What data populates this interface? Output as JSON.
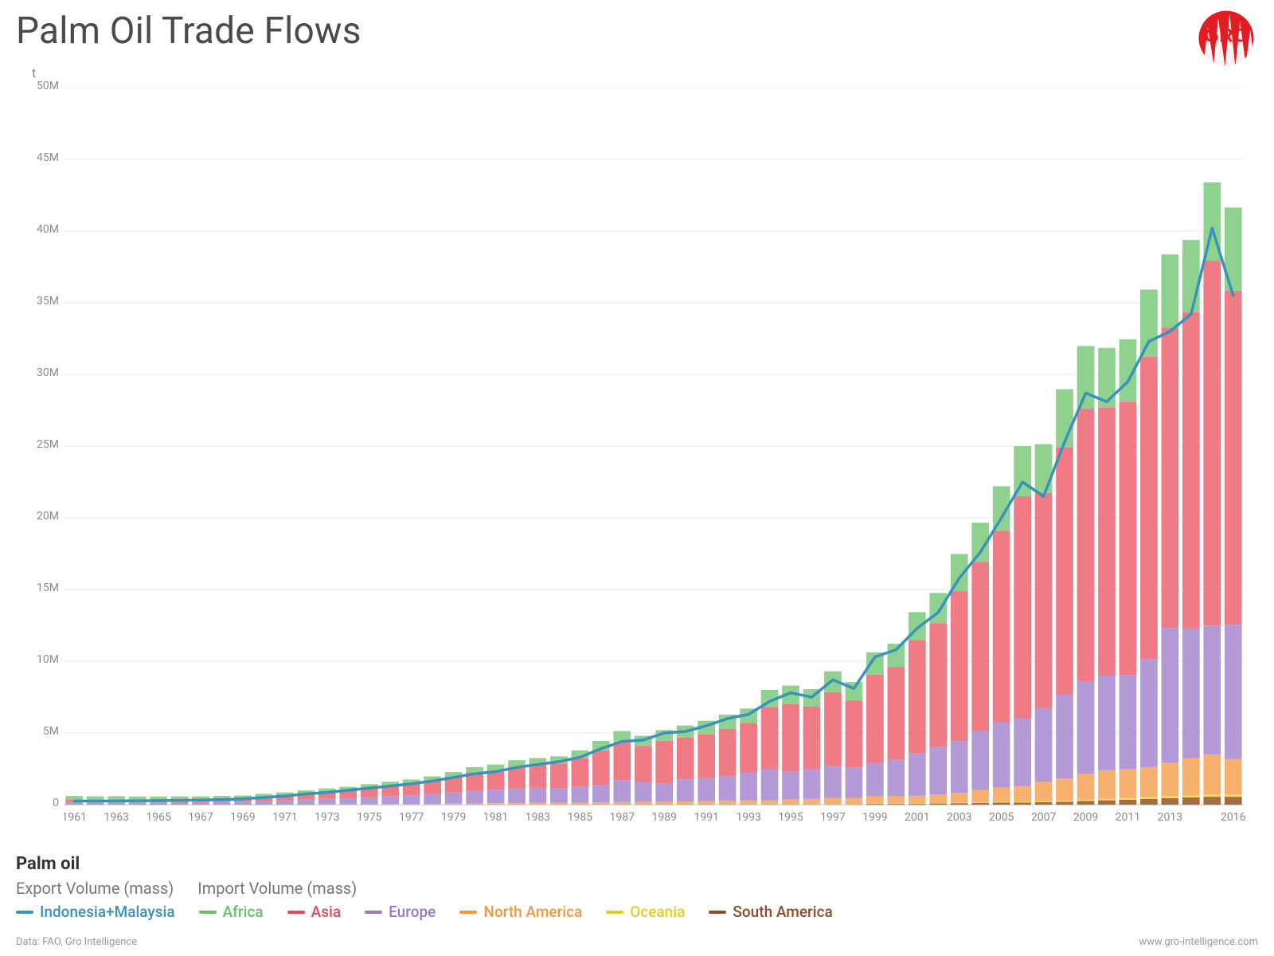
{
  "title": "Palm Oil Trade Flows",
  "y_unit": "t",
  "chart": {
    "type": "stacked-bar-with-line",
    "background_color": "#ffffff",
    "grid_color": "#e8e8e8",
    "axis_color": "#d0d0d0",
    "axis_label_color": "#8a8a8a",
    "axis_label_fontsize": 14,
    "bar_gap_ratio": 0.18,
    "ylim": [
      0,
      50
    ],
    "ytick_step": 5,
    "ytick_suffix": "M",
    "years": [
      1961,
      1962,
      1963,
      1964,
      1965,
      1966,
      1967,
      1968,
      1969,
      1970,
      1971,
      1972,
      1973,
      1974,
      1975,
      1976,
      1977,
      1978,
      1979,
      1980,
      1981,
      1982,
      1983,
      1984,
      1985,
      1986,
      1987,
      1988,
      1989,
      1990,
      1991,
      1992,
      1993,
      1994,
      1995,
      1996,
      1997,
      1998,
      1999,
      2000,
      2001,
      2002,
      2003,
      2004,
      2005,
      2006,
      2007,
      2008,
      2009,
      2010,
      2011,
      2012,
      2013,
      2014,
      2015,
      2016
    ],
    "x_tick_years": [
      1961,
      1963,
      1965,
      1967,
      1969,
      1971,
      1973,
      1975,
      1977,
      1979,
      1981,
      1983,
      1985,
      1987,
      1989,
      1991,
      1993,
      1995,
      1997,
      1999,
      2001,
      2003,
      2005,
      2007,
      2009,
      2011,
      2013,
      2016
    ],
    "stack_order": [
      "south_america",
      "oceania",
      "north_america",
      "europe",
      "asia",
      "africa"
    ],
    "series_colors": {
      "africa": "#8fd18f",
      "asia": "#ef7b86",
      "europe": "#b39ad6",
      "north_america": "#f7b06e",
      "oceania": "#f2e24b",
      "south_america": "#a66b3f"
    },
    "series": {
      "south_america": [
        0,
        0,
        0,
        0,
        0,
        0,
        0,
        0,
        0,
        0,
        0,
        0,
        0,
        0,
        0,
        0,
        0,
        0,
        0,
        0,
        0,
        0,
        0,
        0,
        0,
        0,
        0,
        0,
        0,
        0,
        0,
        0,
        0,
        0,
        0,
        0,
        0,
        0,
        0.05,
        0.05,
        0.05,
        0.08,
        0.1,
        0.12,
        0.15,
        0.15,
        0.18,
        0.2,
        0.25,
        0.3,
        0.35,
        0.4,
        0.45,
        0.5,
        0.55,
        0.55
      ],
      "oceania": [
        0,
        0,
        0,
        0,
        0,
        0,
        0,
        0,
        0,
        0,
        0,
        0,
        0,
        0,
        0,
        0,
        0,
        0,
        0,
        0,
        0,
        0,
        0,
        0,
        0,
        0,
        0,
        0,
        0,
        0,
        0,
        0,
        0,
        0,
        0,
        0,
        0,
        0,
        0.02,
        0.02,
        0.02,
        0.03,
        0.03,
        0.04,
        0.05,
        0.05,
        0.06,
        0.07,
        0.08,
        0.1,
        0.1,
        0.12,
        0.12,
        0.13,
        0.14,
        0.14
      ],
      "north_america": [
        0,
        0,
        0,
        0,
        0,
        0,
        0,
        0,
        0,
        0,
        0,
        0,
        0.02,
        0.02,
        0.03,
        0.05,
        0.05,
        0.06,
        0.07,
        0.08,
        0.1,
        0.1,
        0.12,
        0.12,
        0.13,
        0.15,
        0.18,
        0.2,
        0.2,
        0.22,
        0.25,
        0.28,
        0.3,
        0.3,
        0.35,
        0.4,
        0.45,
        0.45,
        0.5,
        0.5,
        0.55,
        0.6,
        0.7,
        0.85,
        1.0,
        1.1,
        1.35,
        1.55,
        1.8,
        2.0,
        2.05,
        2.1,
        2.35,
        2.6,
        2.8,
        2.5
      ],
      "europe": [
        0.15,
        0.15,
        0.15,
        0.15,
        0.16,
        0.17,
        0.18,
        0.2,
        0.22,
        0.25,
        0.3,
        0.35,
        0.38,
        0.42,
        0.48,
        0.55,
        0.6,
        0.68,
        0.78,
        0.88,
        0.95,
        1.0,
        1.05,
        1.0,
        1.15,
        1.2,
        1.5,
        1.35,
        1.3,
        1.55,
        1.6,
        1.7,
        1.95,
        2.2,
        1.95,
        2.1,
        2.25,
        2.15,
        2.3,
        2.55,
        2.95,
        3.3,
        3.6,
        4.1,
        4.55,
        4.7,
        5.15,
        5.85,
        6.45,
        6.6,
        6.55,
        7.55,
        9.4,
        9.05,
        9.0,
        9.35
      ],
      "asia": [
        0.2,
        0.2,
        0.22,
        0.22,
        0.23,
        0.24,
        0.25,
        0.26,
        0.28,
        0.35,
        0.4,
        0.48,
        0.55,
        0.6,
        0.7,
        0.78,
        0.85,
        0.95,
        1.1,
        1.3,
        1.35,
        1.55,
        1.6,
        1.75,
        1.95,
        2.4,
        2.65,
        2.55,
        2.95,
        2.9,
        3.05,
        3.3,
        3.45,
        4.3,
        4.7,
        4.35,
        5.15,
        4.65,
        6.2,
        6.5,
        7.9,
        8.65,
        10.5,
        11.8,
        13.35,
        15.5,
        15.0,
        17.25,
        19.05,
        18.7,
        19.05,
        21.05,
        20.95,
        22.05,
        25.45,
        23.3
      ],
      "africa": [
        0.25,
        0.23,
        0.22,
        0.2,
        0.18,
        0.17,
        0.15,
        0.15,
        0.14,
        0.15,
        0.15,
        0.16,
        0.18,
        0.2,
        0.22,
        0.22,
        0.25,
        0.28,
        0.32,
        0.35,
        0.4,
        0.45,
        0.48,
        0.5,
        0.55,
        0.7,
        0.8,
        0.7,
        0.75,
        0.85,
        0.95,
        1.0,
        1.0,
        1.2,
        1.3,
        1.2,
        1.45,
        1.3,
        1.55,
        1.6,
        1.95,
        2.1,
        2.55,
        2.75,
        3.1,
        3.5,
        3.4,
        4.05,
        4.35,
        4.15,
        4.35,
        4.7,
        5.1,
        5.05,
        5.45,
        5.8
      ],
      "line_indonesia_malaysia": [
        0.25,
        0.25,
        0.26,
        0.27,
        0.28,
        0.3,
        0.32,
        0.35,
        0.4,
        0.5,
        0.6,
        0.75,
        0.85,
        1.0,
        1.15,
        1.3,
        1.45,
        1.65,
        1.9,
        2.15,
        2.3,
        2.6,
        2.8,
        3.0,
        3.3,
        3.9,
        4.4,
        4.5,
        5.0,
        5.1,
        5.5,
        6.0,
        6.3,
        7.2,
        7.8,
        7.5,
        8.7,
        8.1,
        10.3,
        10.8,
        12.3,
        13.4,
        15.8,
        17.6,
        20.0,
        22.5,
        21.5,
        25.3,
        28.7,
        28.1,
        29.5,
        32.3,
        33.0,
        34.2,
        40.2,
        35.5
      ]
    },
    "line_color": "#3794b8",
    "line_width": 3.5
  },
  "legend": {
    "title": "Palm oil",
    "export_header": "Export Volume (mass)",
    "import_header": "Import Volume (mass)",
    "items": [
      {
        "key": "line_indonesia_malaysia",
        "label": "Indonesia+Malaysia",
        "color": "#3794b8"
      },
      {
        "key": "africa",
        "label": "Africa",
        "color": "#6abf6a"
      },
      {
        "key": "asia",
        "label": "Asia",
        "color": "#e24a5a"
      },
      {
        "key": "europe",
        "label": "Europe",
        "color": "#9a78c8"
      },
      {
        "key": "north_america",
        "label": "North America",
        "color": "#ef9a3e"
      },
      {
        "key": "oceania",
        "label": "Oceania",
        "color": "#e2cf1f"
      },
      {
        "key": "south_america",
        "label": "South America",
        "color": "#8f4b28"
      }
    ]
  },
  "footer": {
    "left": "Data: FAO, Gro Intelligence",
    "right": "www.gro-intelligence.com"
  },
  "logo": {
    "color": "#e31b23",
    "text": "GRO"
  }
}
